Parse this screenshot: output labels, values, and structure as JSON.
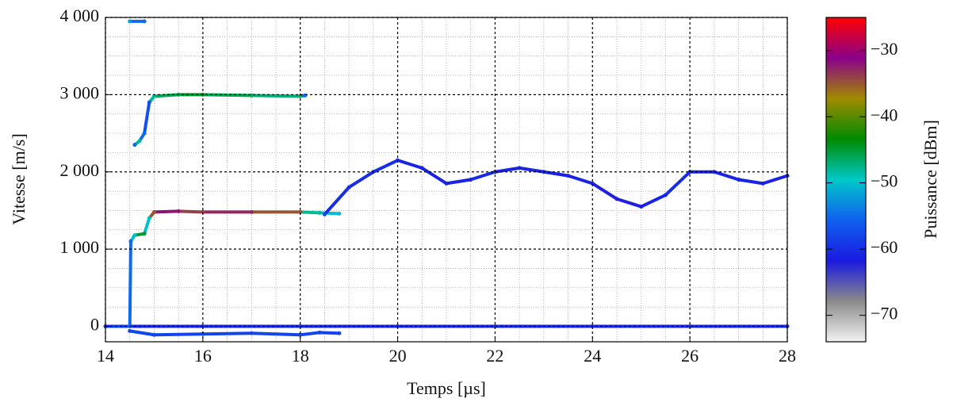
{
  "chart_data": {
    "type": "spectrogram",
    "xlabel": "Temps [µs]",
    "ylabel": "Vitesse [m/s]",
    "xlim": [
      14,
      28
    ],
    "xticks": [
      14,
      16,
      18,
      20,
      22,
      24,
      26,
      28
    ],
    "ylim": [
      -200,
      4000
    ],
    "yticks": [
      0,
      {
        "value": 1000,
        "label": "1 000"
      },
      {
        "value": 2000,
        "label": "2 000"
      },
      {
        "value": 3000,
        "label": "3 000"
      },
      {
        "value": 4000,
        "label": "4 000"
      }
    ],
    "grid": true,
    "colorbar": {
      "label": "Puissance [dBm]",
      "clim": [
        -74,
        -25
      ],
      "ticks": [
        {
          "value": -70,
          "label": "−70"
        },
        {
          "value": -60,
          "label": "−60"
        },
        {
          "value": -50,
          "label": "−50"
        },
        {
          "value": -40,
          "label": "−40"
        },
        {
          "value": -30,
          "label": "−30"
        }
      ],
      "colormap": [
        "#f2f2f2",
        "#8a8a8a",
        "#1a1ae0",
        "#1060f0",
        "#00c8c8",
        "#008a00",
        "#a08a00",
        "#8a008a",
        "#ff0000"
      ]
    },
    "traces": [
      {
        "x": [
          14,
          14.5,
          16,
          18,
          20,
          22,
          24,
          26,
          28
        ],
        "values": [
          0,
          0,
          0,
          0,
          0,
          0,
          0,
          0,
          0
        ],
        "power": [
          -60,
          -58,
          -60,
          -60,
          -60,
          -60,
          -60,
          -60,
          -60
        ]
      },
      {
        "x": [
          14.5,
          15,
          16,
          17,
          18,
          18.4,
          18.8
        ],
        "values": [
          -60,
          -110,
          -100,
          -90,
          -110,
          -80,
          -90
        ],
        "power": [
          -58,
          -58,
          -58,
          -58,
          -58,
          -58,
          -58
        ]
      },
      {
        "x": [
          14.5,
          14.52,
          14.6,
          14.8,
          14.9,
          15,
          15.5,
          16,
          17,
          18,
          18.4,
          18.8
        ],
        "values": [
          0,
          1100,
          1180,
          1200,
          1400,
          1480,
          1490,
          1480,
          1480,
          1480,
          1470,
          1460
        ],
        "power": [
          -55,
          -55,
          -50,
          -45,
          -50,
          -35,
          -32,
          -34,
          -33,
          -35,
          -48,
          -50
        ]
      },
      {
        "x": [
          14.6,
          14.7,
          14.8,
          14.9,
          15,
          15.5,
          16,
          17,
          18,
          18.1
        ],
        "values": [
          2350,
          2400,
          2500,
          2900,
          2980,
          3000,
          3000,
          2990,
          2980,
          2990
        ],
        "power": [
          -55,
          -48,
          -55,
          -57,
          -48,
          -46,
          -45,
          -46,
          -47,
          -55
        ]
      },
      {
        "x": [
          18.5,
          19,
          19.5,
          20,
          20.5,
          21,
          21.5,
          22,
          22.5,
          23,
          23.5,
          24,
          24.5,
          25,
          25.5,
          26,
          26.5,
          27,
          27.5,
          28
        ],
        "values": [
          1450,
          1800,
          2000,
          2150,
          2050,
          1850,
          1900,
          2000,
          2050,
          2000,
          1950,
          1850,
          1650,
          1550,
          1700,
          2000,
          2000,
          1900,
          1850,
          1950
        ],
        "power": [
          -58,
          -60,
          -60,
          -60,
          -61,
          -61,
          -61,
          -60,
          -61,
          -61,
          -61,
          -61,
          -62,
          -62,
          -61,
          -60,
          -61,
          -61,
          -61,
          -61
        ]
      },
      {
        "x": [
          14.5,
          14.8
        ],
        "values": [
          3950,
          3950
        ],
        "power": [
          -52,
          -55
        ]
      }
    ]
  }
}
